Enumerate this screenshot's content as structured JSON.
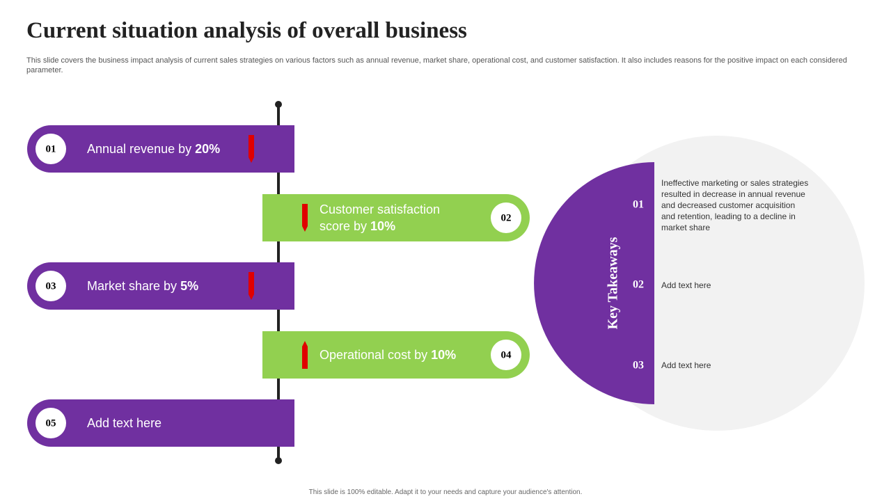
{
  "header": {
    "title": "Current situation analysis of overall business",
    "subtitle": "This slide covers the business impact analysis of current sales strategies on various factors such as annual revenue, market share, operational cost, and customer satisfaction. It also includes reasons for the positive impact on each considered parameter."
  },
  "items": [
    {
      "number": "01",
      "lines": [
        "Annual revenue by"
      ],
      "highlight": "20%"
    },
    {
      "number": "02",
      "lines": [
        "Customer satisfaction",
        "score by"
      ],
      "highlight": "10%"
    },
    {
      "number": "03",
      "lines": [
        "Market share by"
      ],
      "highlight": "5%"
    },
    {
      "number": "04",
      "lines": [
        "Operational cost by"
      ],
      "highlight": "10%"
    },
    {
      "number": "05",
      "lines": [
        "Add text here"
      ],
      "highlight": null
    }
  ],
  "takeaways": {
    "heading": "Key Takeaways",
    "points": [
      {
        "number": "01",
        "text": "Ineffective  marketing or sales strategies resulted in decrease in annual revenue  and decreased customer acquisition and retention, leading to a decline in market share"
      },
      {
        "number": "02",
        "text": "Add text here"
      },
      {
        "number": "03",
        "text": "Add text here"
      }
    ]
  },
  "footer": "This slide is 100% editable. Adapt it to your needs and capture your audience's attention."
}
